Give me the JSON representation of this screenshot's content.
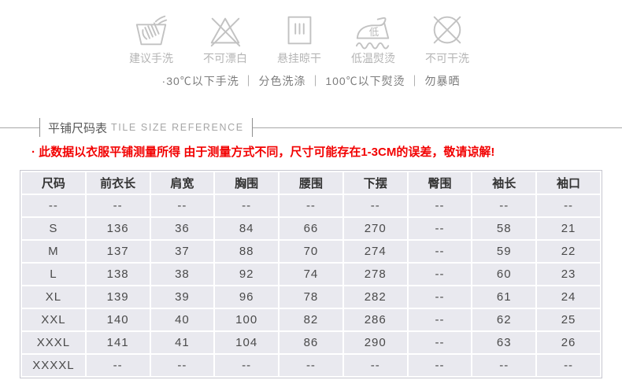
{
  "care": {
    "items": [
      {
        "icon": "hand-wash-icon",
        "label": "建议手洗"
      },
      {
        "icon": "no-bleach-icon",
        "label": "不可漂白"
      },
      {
        "icon": "hang-dry-icon",
        "label": "悬挂晾干"
      },
      {
        "icon": "low-temp-iron-icon",
        "label": "低温熨烫"
      },
      {
        "icon": "no-dry-clean-icon",
        "label": "不可干洗"
      }
    ],
    "iron_char": "低",
    "note": "·30℃以下手洗 ｜ 分色洗涤 ｜ 100℃以下熨烫 ｜ 勿暴晒"
  },
  "size_section": {
    "title_cn": "平铺尺码表",
    "title_en": "TILE SIZE REFERENCE",
    "disclaimer": "· 此数据以衣服平铺测量所得 由于测量方式不同，尺寸可能存在1-3CM的误差，敬请谅解!"
  },
  "table": {
    "headers": [
      "尺码",
      "前衣长",
      "肩宽",
      "胸围",
      "腰围",
      "下摆",
      "臀围",
      "袖长",
      "袖口"
    ],
    "rows": [
      [
        "--",
        "--",
        "--",
        "--",
        "--",
        "--",
        "--",
        "--",
        "--"
      ],
      [
        "S",
        "136",
        "36",
        "84",
        "66",
        "270",
        "--",
        "58",
        "21"
      ],
      [
        "M",
        "137",
        "37",
        "88",
        "70",
        "274",
        "--",
        "59",
        "22"
      ],
      [
        "L",
        "138",
        "38",
        "92",
        "74",
        "278",
        "--",
        "60",
        "23"
      ],
      [
        "XL",
        "139",
        "39",
        "96",
        "78",
        "282",
        "--",
        "61",
        "24"
      ],
      [
        "XXL",
        "140",
        "40",
        "100",
        "82",
        "286",
        "--",
        "62",
        "25"
      ],
      [
        "XXXL",
        "141",
        "41",
        "104",
        "86",
        "290",
        "--",
        "63",
        "26"
      ],
      [
        "XXXXL",
        "--",
        "--",
        "--",
        "--",
        "--",
        "--",
        "--",
        "--"
      ]
    ]
  },
  "colors": {
    "disclaimer_red": "#f20000",
    "icon_gray": "#c2c2c2",
    "care_label_gray": "#b5b5b5",
    "note_gray": "#7d7d7d",
    "table_cell_bg": "#e9e9ef",
    "table_grid_white": "#ffffff",
    "table_border": "#c6c6cf",
    "header_text": "#333333",
    "cell_text": "#4a4a4a"
  }
}
